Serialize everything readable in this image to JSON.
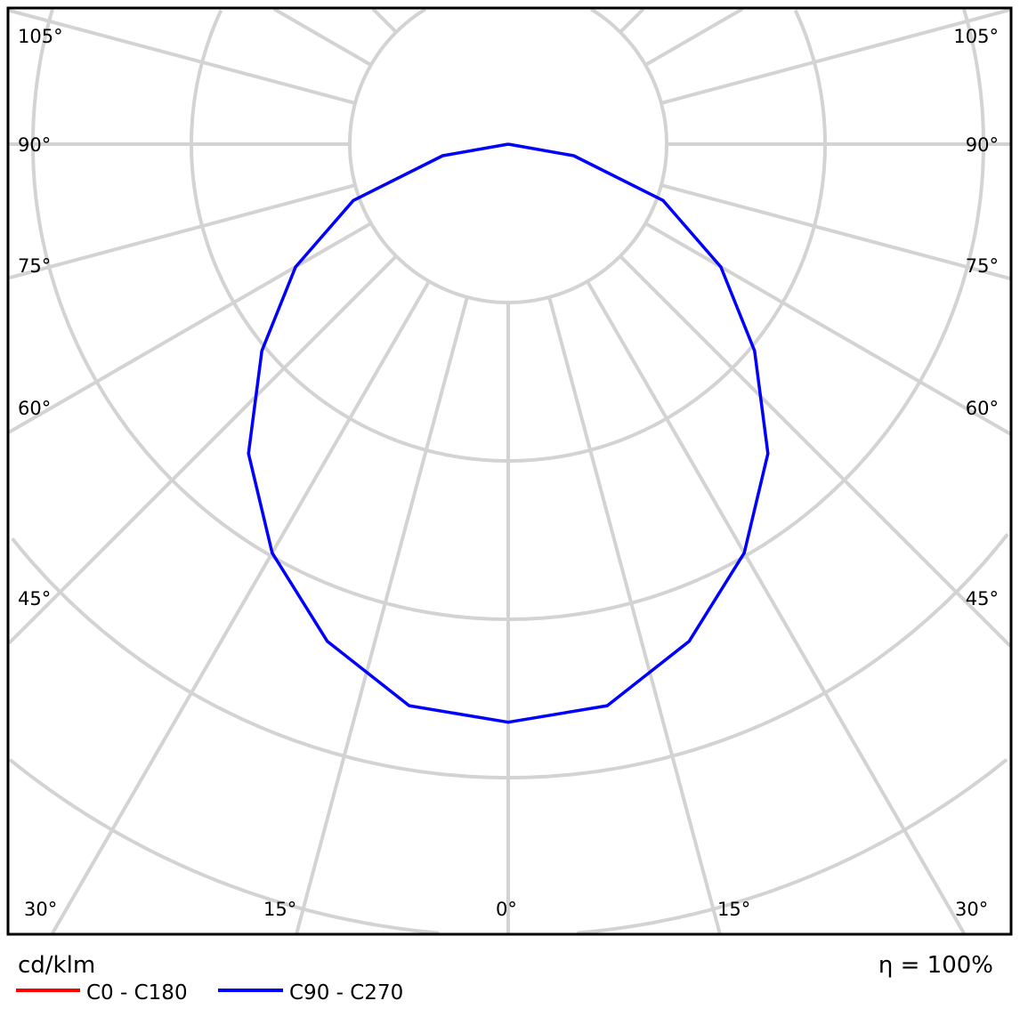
{
  "chart_data": {
    "type": "polar-line",
    "unit_label": "cd/klm",
    "efficiency_label": "η = 100%",
    "angle_ticks_left": [
      "105°",
      "90°",
      "75°",
      "60°",
      "45°"
    ],
    "angle_ticks_right": [
      "105°",
      "90°",
      "75°",
      "60°",
      "45°"
    ],
    "angle_ticks_bottom": [
      "30°",
      "15°",
      "0°",
      "15°",
      "30°"
    ],
    "grid": true,
    "grid_color": "#d3d3d3",
    "angles_deg": [
      0,
      10,
      20,
      30,
      40,
      50,
      60,
      70,
      80,
      90
    ],
    "series": [
      {
        "name": "C0 - C180",
        "color": "#ff0000",
        "values": [
          365,
          360,
          334,
          298,
          255,
          203,
          155,
          104,
          42,
          0
        ]
      },
      {
        "name": "C90 - C270",
        "color": "#0000ff",
        "values": [
          365,
          360,
          334,
          298,
          255,
          203,
          155,
          104,
          42,
          0
        ]
      }
    ],
    "ring_step": 100,
    "legend_position": "bottom-left"
  }
}
